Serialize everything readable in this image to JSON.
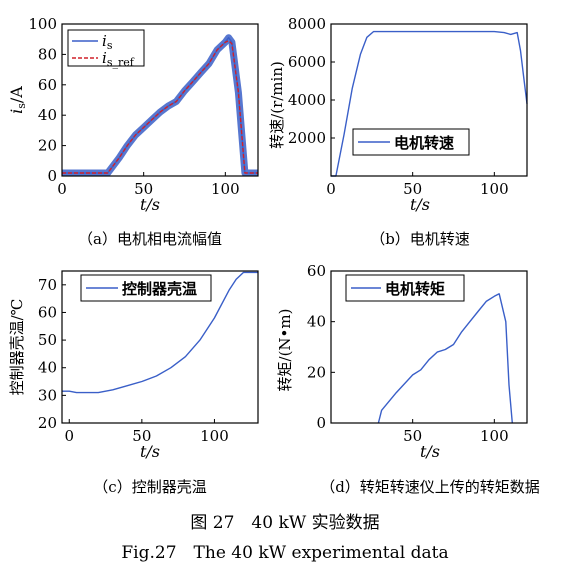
{
  "chart_data": [
    {
      "id": "a",
      "type": "line",
      "xlabel": "t/s",
      "ylabel": "is/A",
      "xlim": [
        0,
        120
      ],
      "ylim": [
        0,
        100
      ],
      "xticks": [
        0,
        50,
        100
      ],
      "yticks": [
        0,
        20,
        40,
        60,
        80,
        100
      ],
      "legend_placement": "top-left",
      "series": [
        {
          "name": "is",
          "legend_sub": "s",
          "color": "#3a5fc8",
          "x": [
            0,
            10,
            20,
            28,
            35,
            40,
            45,
            50,
            55,
            60,
            65,
            70,
            75,
            80,
            85,
            90,
            95,
            100,
            102,
            104,
            108,
            112,
            120
          ],
          "y": [
            2,
            2,
            2,
            2,
            12,
            20,
            27,
            32,
            37,
            42,
            46,
            49,
            56,
            62,
            68,
            74,
            83,
            88,
            91,
            88,
            55,
            2,
            2
          ]
        },
        {
          "name": "is_ref",
          "legend_sub": "s_ref",
          "color": "#d0202a",
          "x": [
            0,
            10,
            20,
            28,
            35,
            40,
            45,
            50,
            55,
            60,
            65,
            70,
            75,
            80,
            85,
            90,
            95,
            100,
            102,
            104,
            108,
            112,
            120
          ],
          "y": [
            2,
            2,
            2,
            2,
            12,
            20,
            27,
            32,
            37,
            42,
            46,
            49,
            56,
            62,
            68,
            74,
            83,
            88,
            89,
            87,
            55,
            2,
            2
          ]
        }
      ],
      "caption": "（a）电机相电流幅值"
    },
    {
      "id": "b",
      "type": "line",
      "xlabel": "t/s",
      "ylabel": "转速/(r/min)",
      "xlim": [
        0,
        120
      ],
      "ylim": [
        0,
        8000
      ],
      "xticks": [
        0,
        50,
        100
      ],
      "yticks": [
        2000,
        4000,
        6000,
        8000
      ],
      "legend_placement": "center",
      "series": [
        {
          "name": "电机转速",
          "color": "#3a5fc8",
          "x": [
            0,
            3,
            8,
            13,
            18,
            22,
            26,
            30,
            50,
            80,
            100,
            106,
            110,
            114,
            116,
            118,
            120
          ],
          "y": [
            0,
            0,
            2200,
            4600,
            6400,
            7300,
            7600,
            7600,
            7600,
            7600,
            7600,
            7550,
            7450,
            7550,
            6600,
            5200,
            3800
          ]
        }
      ],
      "caption": "（b）电机转速"
    },
    {
      "id": "c",
      "type": "line",
      "xlabel": "t/s",
      "ylabel": "控制器壳温/℃",
      "xlim": [
        -5,
        130
      ],
      "ylim": [
        20,
        75
      ],
      "xticks": [
        0,
        50,
        100
      ],
      "yticks": [
        20,
        30,
        40,
        50,
        60,
        70
      ],
      "legend_placement": "top-left",
      "series": [
        {
          "name": "控制器壳温",
          "color": "#3a5fc8",
          "x": [
            -5,
            0,
            5,
            20,
            30,
            40,
            50,
            60,
            70,
            80,
            90,
            100,
            110,
            115,
            120,
            130
          ],
          "y": [
            31.5,
            31.5,
            31,
            31,
            32,
            33.5,
            35,
            37,
            40,
            44,
            50,
            58,
            68,
            72,
            74.5,
            74.5
          ]
        }
      ],
      "caption": "（c）控制器壳温"
    },
    {
      "id": "d",
      "type": "line",
      "xlabel": "t/s",
      "ylabel": "转矩/(N•m)",
      "xlim": [
        0,
        120
      ],
      "ylim": [
        0,
        60
      ],
      "xticks": [
        50,
        100
      ],
      "yticks": [
        0,
        20,
        40,
        60
      ],
      "legend_placement": "top-left",
      "series": [
        {
          "name": "电机转矩",
          "color": "#3a5fc8",
          "x": [
            29,
            31,
            40,
            50,
            55,
            60,
            65,
            70,
            75,
            80,
            85,
            90,
            95,
            100,
            103,
            107,
            109,
            111
          ],
          "y": [
            0,
            5,
            12,
            19,
            21,
            25,
            28,
            29,
            31,
            36,
            40,
            44,
            48,
            50,
            51,
            40,
            15,
            0
          ]
        }
      ],
      "caption": "（d）转矩转速仪上传的转矩数据"
    }
  ],
  "figure_title_cn": "图 27　40 kW 实验数据",
  "figure_title_en": "Fig.27　The 40 kW experimental data"
}
